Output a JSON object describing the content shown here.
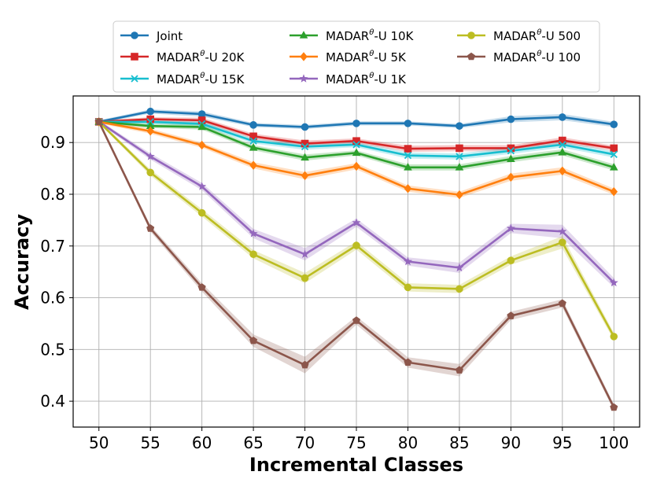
{
  "chart_data": {
    "type": "line",
    "xlabel": "Incremental Classes",
    "ylabel": "Accuracy",
    "x": [
      50,
      55,
      60,
      65,
      70,
      75,
      80,
      85,
      90,
      95,
      100
    ],
    "xlim": [
      47.5,
      102.5
    ],
    "ylim": [
      0.35,
      0.99
    ],
    "yticks": [
      0.4,
      0.5,
      0.6,
      0.7,
      0.8,
      0.9
    ],
    "ytick_labels": [
      "0.4",
      "0.5",
      "0.6",
      "0.7",
      "0.8",
      "0.9"
    ],
    "xticks": [
      50,
      55,
      60,
      65,
      70,
      75,
      80,
      85,
      90,
      95,
      100
    ],
    "xtick_labels": [
      "50",
      "55",
      "60",
      "65",
      "70",
      "75",
      "80",
      "85",
      "90",
      "95",
      "100"
    ],
    "grid": true,
    "legend_position": "top-center",
    "series": [
      {
        "name": "Joint",
        "label_parts": [
          "Joint",
          "",
          ""
        ],
        "color": "#1f77b4",
        "marker": "circle",
        "values": [
          0.94,
          0.96,
          0.955,
          0.934,
          0.93,
          0.937,
          0.937,
          0.932,
          0.945,
          0.949,
          0.935
        ],
        "band": [
          0.003,
          0.004,
          0.005,
          0.004,
          0.004,
          0.004,
          0.004,
          0.004,
          0.006,
          0.006,
          0.005
        ]
      },
      {
        "name": "MADARθ-U 20K",
        "label_parts": [
          "MADAR",
          "θ",
          "-U 20K"
        ],
        "color": "#d62728",
        "marker": "square",
        "values": [
          0.94,
          0.945,
          0.943,
          0.912,
          0.898,
          0.903,
          0.888,
          0.889,
          0.889,
          0.904,
          0.889
        ],
        "band": [
          0.003,
          0.004,
          0.005,
          0.005,
          0.006,
          0.005,
          0.006,
          0.006,
          0.006,
          0.006,
          0.005
        ]
      },
      {
        "name": "MADARθ-U 15K",
        "label_parts": [
          "MADAR",
          "θ",
          "-U 15K"
        ],
        "color": "#17becf",
        "marker": "x",
        "values": [
          0.94,
          0.94,
          0.936,
          0.903,
          0.892,
          0.896,
          0.875,
          0.873,
          0.884,
          0.896,
          0.877
        ],
        "band": [
          0.003,
          0.004,
          0.005,
          0.005,
          0.006,
          0.005,
          0.006,
          0.006,
          0.006,
          0.006,
          0.006
        ]
      },
      {
        "name": "MADARθ-U 10K",
        "label_parts": [
          "MADAR",
          "θ",
          "-U 10K"
        ],
        "color": "#2ca02c",
        "marker": "triangle",
        "values": [
          0.94,
          0.932,
          0.93,
          0.89,
          0.871,
          0.88,
          0.852,
          0.852,
          0.868,
          0.881,
          0.852
        ],
        "band": [
          0.003,
          0.004,
          0.005,
          0.005,
          0.006,
          0.005,
          0.006,
          0.006,
          0.006,
          0.006,
          0.006
        ]
      },
      {
        "name": "MADARθ-U 5K",
        "label_parts": [
          "MADAR",
          "θ",
          "-U 5K"
        ],
        "color": "#ff7f0e",
        "marker": "diamond",
        "values": [
          0.94,
          0.922,
          0.895,
          0.856,
          0.836,
          0.854,
          0.811,
          0.799,
          0.833,
          0.845,
          0.805
        ],
        "band": [
          0.003,
          0.005,
          0.005,
          0.006,
          0.007,
          0.006,
          0.006,
          0.006,
          0.007,
          0.007,
          0.006
        ]
      },
      {
        "name": "MADARθ-U 1K",
        "label_parts": [
          "MADAR",
          "θ",
          "-U 1K"
        ],
        "color": "#9467bd",
        "marker": "star",
        "values": [
          0.94,
          0.873,
          0.815,
          0.724,
          0.684,
          0.745,
          0.67,
          0.658,
          0.734,
          0.728,
          0.629
        ],
        "band": [
          0.003,
          0.006,
          0.007,
          0.009,
          0.012,
          0.008,
          0.008,
          0.01,
          0.009,
          0.013,
          0.009
        ]
      },
      {
        "name": "MADARθ-U 500",
        "label_parts": [
          "MADAR",
          "θ",
          "-U 500"
        ],
        "color": "#bcbd22",
        "marker": "circle",
        "values": [
          0.94,
          0.842,
          0.764,
          0.684,
          0.638,
          0.701,
          0.62,
          0.617,
          0.672,
          0.707,
          0.525
        ],
        "band": [
          0.003,
          0.006,
          0.007,
          0.008,
          0.01,
          0.008,
          0.008,
          0.008,
          0.008,
          0.012,
          0.007
        ]
      },
      {
        "name": "MADARθ-U 100",
        "label_parts": [
          "MADAR",
          "θ",
          "-U 100"
        ],
        "color": "#8c564b",
        "marker": "pentagon",
        "values": [
          0.94,
          0.734,
          0.62,
          0.517,
          0.47,
          0.556,
          0.475,
          0.46,
          0.565,
          0.589,
          0.388
        ],
        "band": [
          0.003,
          0.006,
          0.008,
          0.012,
          0.016,
          0.008,
          0.01,
          0.012,
          0.008,
          0.008,
          0.006
        ]
      }
    ]
  }
}
